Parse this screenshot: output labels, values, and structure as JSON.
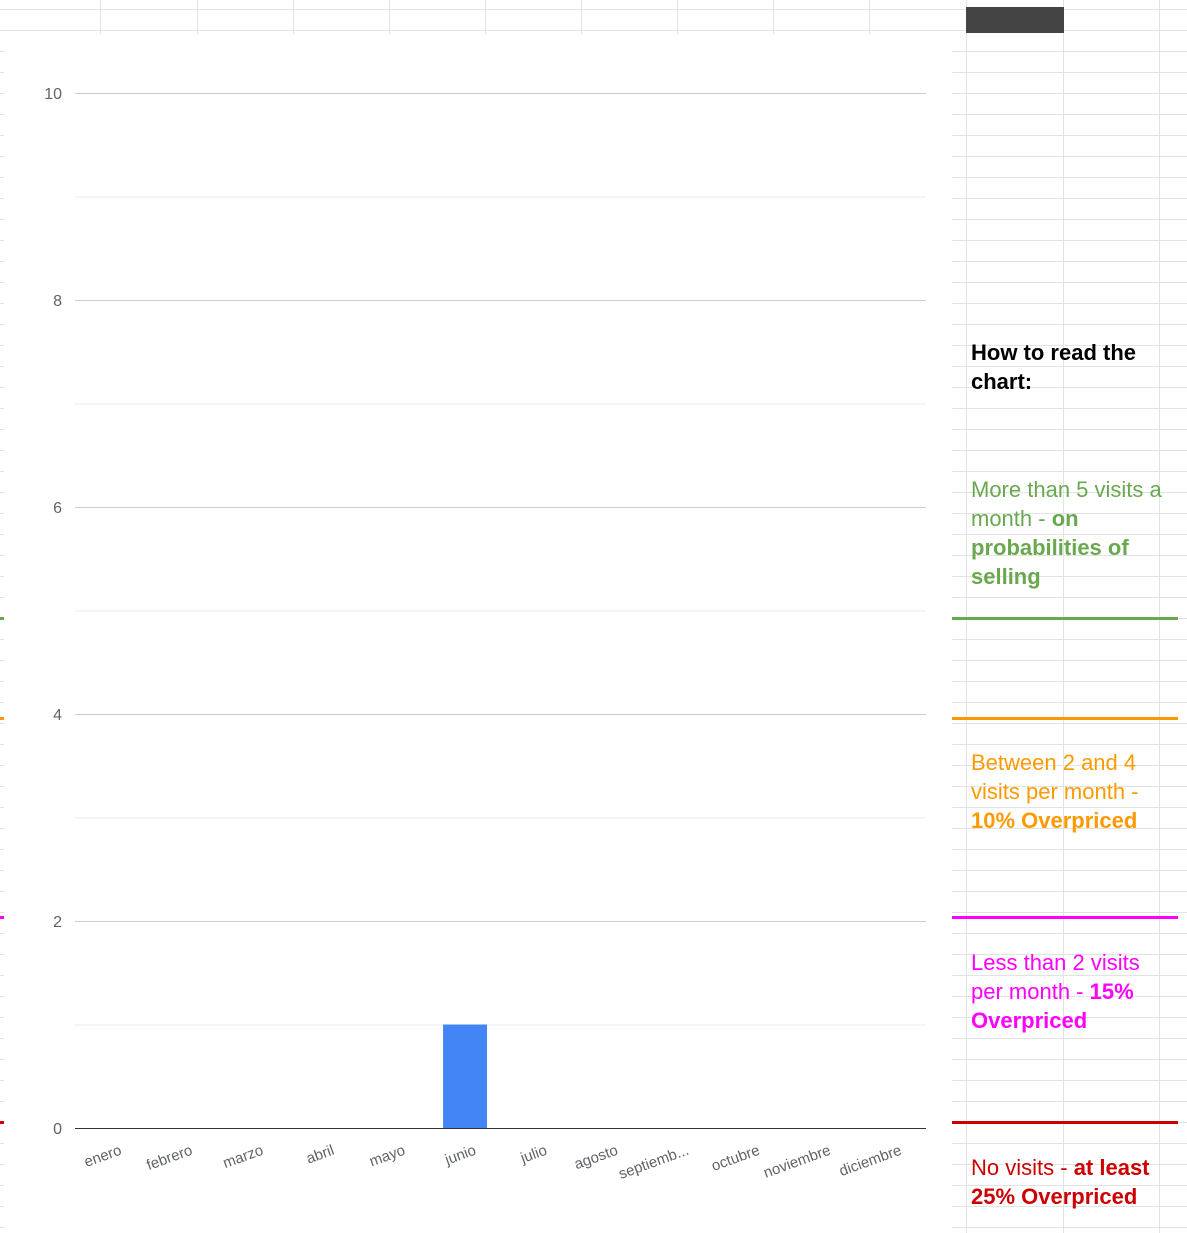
{
  "chart_data": {
    "type": "bar",
    "categories": [
      "enero",
      "febrero",
      "marzo",
      "abril",
      "mayo",
      "junio",
      "julio",
      "agosto",
      "septiemb...",
      "octubre",
      "noviembre",
      "diciembre"
    ],
    "values": [
      0,
      0,
      0,
      0,
      0,
      1,
      0,
      0,
      0,
      0,
      0,
      0
    ],
    "ylim": [
      0,
      10
    ],
    "yticks": [
      "0",
      "2",
      "4",
      "6",
      "8",
      "10"
    ],
    "title": "",
    "xlabel": "",
    "ylabel": "",
    "bar_color": "#4285f4",
    "grid": true,
    "legend": "none"
  },
  "legend_panel": {
    "heading": "How to read the chart:",
    "notes": [
      {
        "text": "More than 5 visits a month - ",
        "bold": "on probabilities of selling",
        "color": "#6aa84f",
        "threshold": 5
      },
      {
        "text": "Between 2 and 4 visits per month - ",
        "bold": "10% Overpriced",
        "color": "#ff9900",
        "threshold": 4
      },
      {
        "text": "Less than 2 visits per month - ",
        "bold": "15% Overpriced",
        "color": "#ff00ff",
        "threshold": 2
      },
      {
        "text": "No visits - ",
        "bold": "at least 25% Overpriced",
        "color": "#cc0000",
        "threshold": 0
      }
    ]
  }
}
